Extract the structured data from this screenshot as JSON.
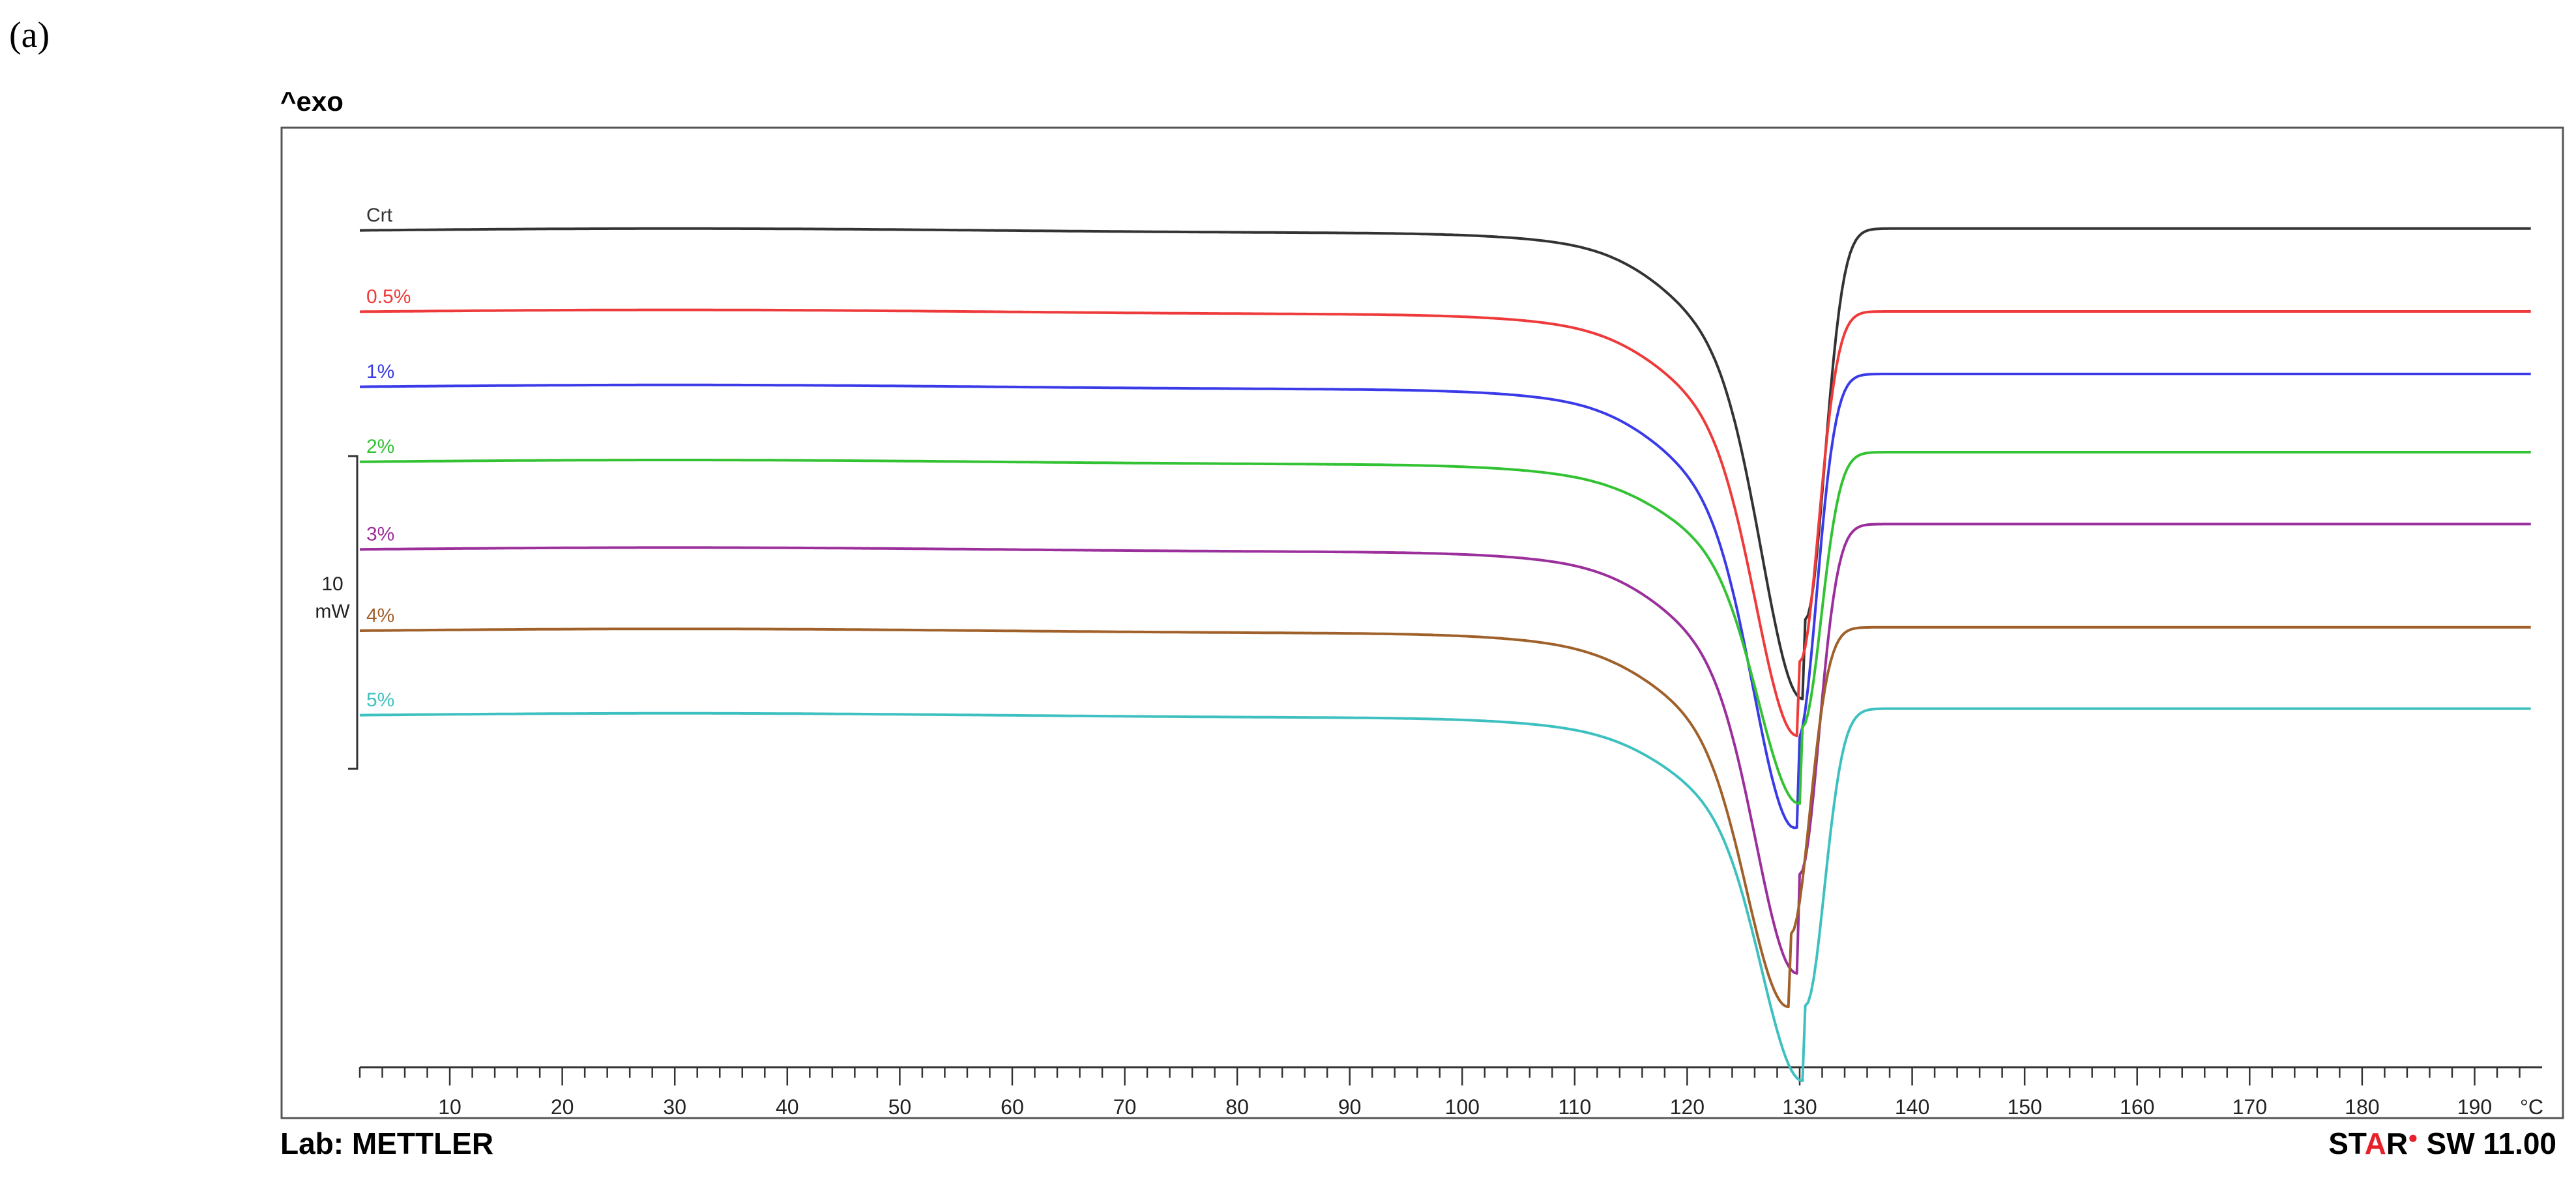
{
  "panel_label": "(a)",
  "footer": {
    "lab": "Lab: METTLER",
    "software_star_part1": "ST",
    "software_star_part2": "A",
    "software_star_part3": "R",
    "software_version": " SW 11.00"
  },
  "chart_data": {
    "type": "line",
    "ylabel": "^exo",
    "xlabel": "",
    "x_unit": "°C",
    "xlim": [
      2,
      196
    ],
    "x_ticks": [
      10,
      20,
      30,
      40,
      50,
      60,
      70,
      80,
      90,
      100,
      110,
      120,
      130,
      140,
      150,
      160,
      170,
      180,
      190
    ],
    "scale_bar": {
      "value": "10",
      "unit": "mW",
      "mw": 10
    },
    "grid": false,
    "series": [
      {
        "name": "Crt",
        "color": "#333333",
        "baseline_left_mw": 0.0,
        "baseline_right_mw": 0.15,
        "peak_x": 130.5,
        "peak_depth_mw": 12.5
      },
      {
        "name": "0.5%",
        "color": "#ee3a3a",
        "baseline_left_mw": -2.6,
        "baseline_right_mw": -2.5,
        "peak_x": 130.0,
        "peak_depth_mw": 11.2
      },
      {
        "name": "1%",
        "color": "#3a3ae8",
        "baseline_left_mw": -5.0,
        "baseline_right_mw": -4.5,
        "peak_x": 129.8,
        "peak_depth_mw": 11.7
      },
      {
        "name": "2%",
        "color": "#33c233",
        "baseline_left_mw": -7.4,
        "baseline_right_mw": -7.0,
        "peak_x": 130.2,
        "peak_depth_mw": 8.8
      },
      {
        "name": "3%",
        "color": "#9b2f9b",
        "baseline_left_mw": -10.2,
        "baseline_right_mw": -9.3,
        "peak_x": 130.0,
        "peak_depth_mw": 11.2
      },
      {
        "name": "4%",
        "color": "#a0602a",
        "baseline_left_mw": -12.8,
        "baseline_right_mw": -12.6,
        "peak_x": 129.2,
        "peak_depth_mw": 9.8
      },
      {
        "name": "5%",
        "color": "#3fc0c0",
        "baseline_left_mw": -15.5,
        "baseline_right_mw": -15.2,
        "peak_x": 130.5,
        "peak_depth_mw": 9.5
      }
    ]
  }
}
